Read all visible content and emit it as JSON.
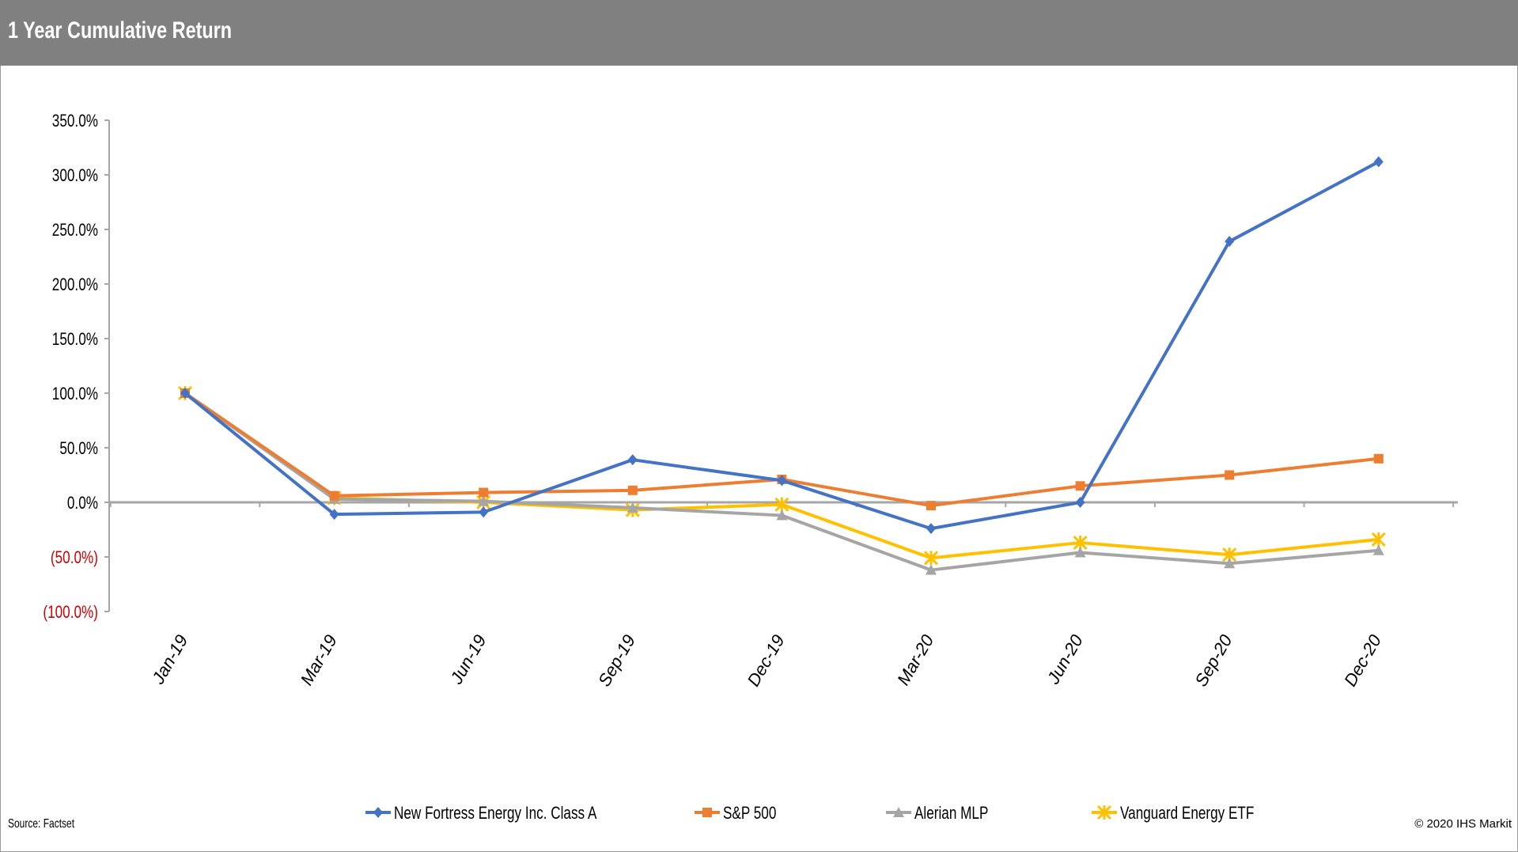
{
  "header": {
    "title": "1 Year Cumulative Return"
  },
  "footer": {
    "source": "Source: Factset",
    "copyright": "© 2020 IHS Markit"
  },
  "chart_data": {
    "type": "line",
    "title": "1 Year Cumulative Return",
    "categories": [
      "Jan-19",
      "Mar-19",
      "Jun-19",
      "Sep-19",
      "Dec-19",
      "Mar-20",
      "Jun-20",
      "Sep-20",
      "Dec-20"
    ],
    "ylim": [
      -100,
      350
    ],
    "yticks": [
      350,
      300,
      250,
      200,
      150,
      100,
      50,
      0,
      -50,
      -100
    ],
    "ytick_labels": [
      "350.0%",
      "300.0%",
      "250.0%",
      "200.0%",
      "150.0%",
      "100.0%",
      "50.0%",
      "0.0%",
      "(50.0%)",
      "(100.0%)"
    ],
    "ytick_colors": [
      "#000000",
      "#000000",
      "#000000",
      "#000000",
      "#000000",
      "#000000",
      "#000000",
      "#000000",
      "#cc0000",
      "#cc0000"
    ],
    "grid": false,
    "legend_position": "bottom",
    "series": [
      {
        "name": "New Fortress Energy Inc. Class A",
        "color": "#4472C4",
        "marker": "diamond",
        "values": [
          100,
          -11,
          -9,
          39,
          20,
          -24,
          0,
          239,
          312
        ]
      },
      {
        "name": "S&P 500",
        "color": "#ED7D31",
        "marker": "square",
        "values": [
          100,
          6,
          9,
          11,
          21,
          -3,
          15,
          25,
          40
        ]
      },
      {
        "name": "Alerian MLP",
        "color": "#A5A5A5",
        "marker": "triangle",
        "values": [
          100,
          3,
          1,
          -5,
          -12,
          -62,
          -46,
          -56,
          -44
        ]
      },
      {
        "name": "Vanguard Energy ETF",
        "color": "#FFC000",
        "marker": "star",
        "values": [
          100,
          4,
          0,
          -7,
          -2,
          -51,
          -37,
          -48,
          -34
        ]
      }
    ]
  }
}
